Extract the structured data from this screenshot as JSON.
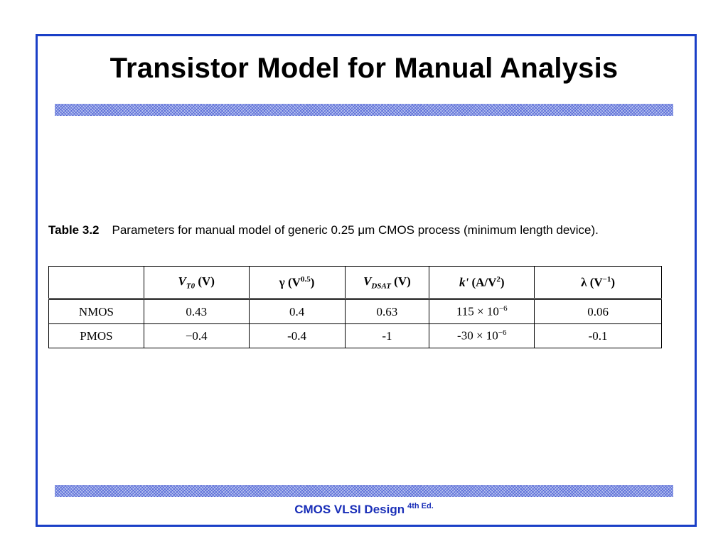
{
  "slide": {
    "title": "Transistor Model for Manual Analysis",
    "footer_main": "CMOS VLSI Design",
    "footer_edition": "4th Ed."
  },
  "caption": {
    "label": "Table 3.2",
    "text": "Parameters for manual model of generic 0.25 μm CMOS process (minimum length device)."
  },
  "table": {
    "headers": {
      "vt0_base": "V",
      "vt0_sub": "T0",
      "vt0_unit": "(V)",
      "gamma_sym": "γ",
      "gamma_unit_base": "(V",
      "gamma_unit_sup": "0.5",
      "gamma_unit_end": ")",
      "vdsat_base": "V",
      "vdsat_sub": "DSAT",
      "vdsat_unit": "(V)",
      "k_sym": "k'",
      "k_unit_base": "(A/V",
      "k_unit_sup": "2",
      "k_unit_end": ")",
      "lambda_sym": "λ",
      "lambda_unit_base": "(V",
      "lambda_unit_sup": "−1",
      "lambda_unit_end": ")"
    },
    "rows": [
      {
        "device": "NMOS",
        "vt0": "0.43",
        "gamma": "0.4",
        "vdsat": "0.63",
        "k_base": "115 × 10",
        "k_exp": "−6",
        "lambda": "0.06"
      },
      {
        "device": "PMOS",
        "vt0": "−0.4",
        "gamma": "-0.4",
        "vdsat": "-1",
        "k_base": "-30 × 10",
        "k_exp": "−6",
        "lambda": "-0.1"
      }
    ]
  },
  "colors": {
    "frame": "#1a3fc7",
    "footer": "#1a2fb8",
    "bar": "#b8c4f0"
  }
}
